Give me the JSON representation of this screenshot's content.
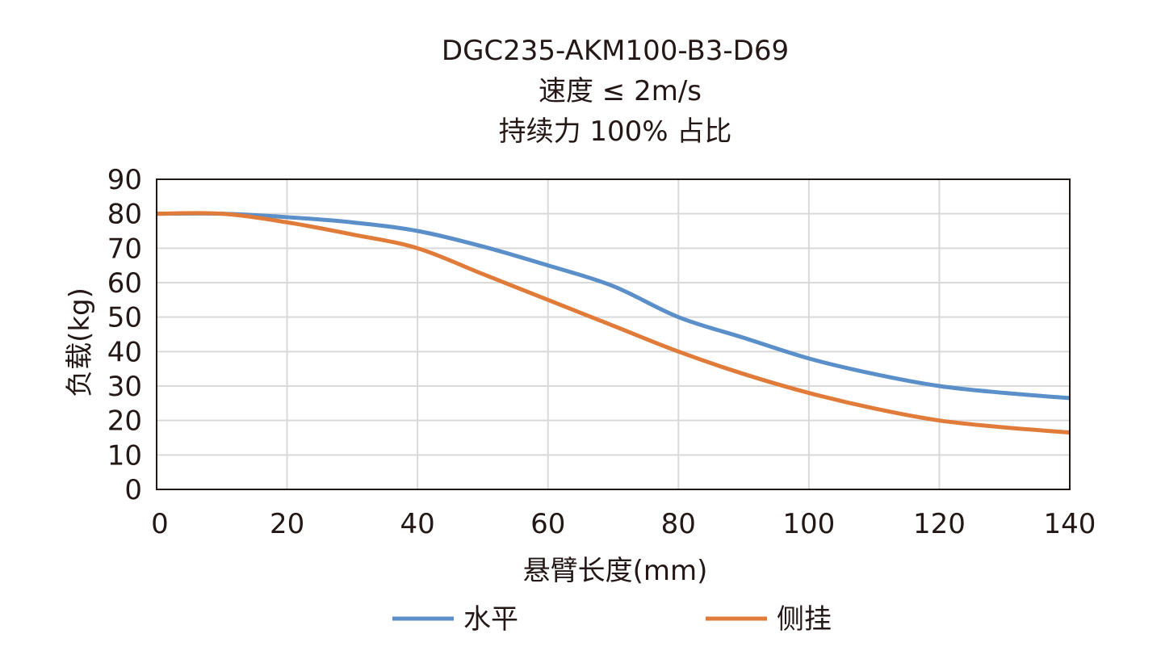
{
  "chart_data": {
    "type": "line",
    "title": [
      "DGC235-AKM100-B3-D69",
      "速度 ≤ 2m/s",
      "持续力 100% 占比"
    ],
    "xlabel": "悬臂长度(mm)",
    "ylabel": "负载(kg)",
    "xlim": [
      0,
      140
    ],
    "ylim": [
      0,
      90
    ],
    "xticks": [
      0,
      20,
      40,
      60,
      80,
      100,
      120,
      140
    ],
    "yticks": [
      0,
      10,
      20,
      30,
      40,
      50,
      60,
      70,
      80,
      90
    ],
    "grid": true,
    "legend_position": "bottom",
    "x": [
      0,
      10,
      20,
      30,
      40,
      50,
      60,
      70,
      80,
      90,
      100,
      110,
      120,
      130,
      140
    ],
    "series": [
      {
        "name": "水平",
        "color": "#5b8fc9",
        "values": [
          80,
          80,
          79,
          77.5,
          75,
          70.5,
          65,
          59,
          50,
          44,
          38,
          33.5,
          30,
          28,
          26.5
        ]
      },
      {
        "name": "侧挂",
        "color": "#e07b39",
        "values": [
          80,
          80,
          77.5,
          74,
          70,
          62.5,
          55,
          47.5,
          40,
          33.5,
          28,
          23.5,
          20,
          18,
          16.5
        ]
      }
    ]
  }
}
